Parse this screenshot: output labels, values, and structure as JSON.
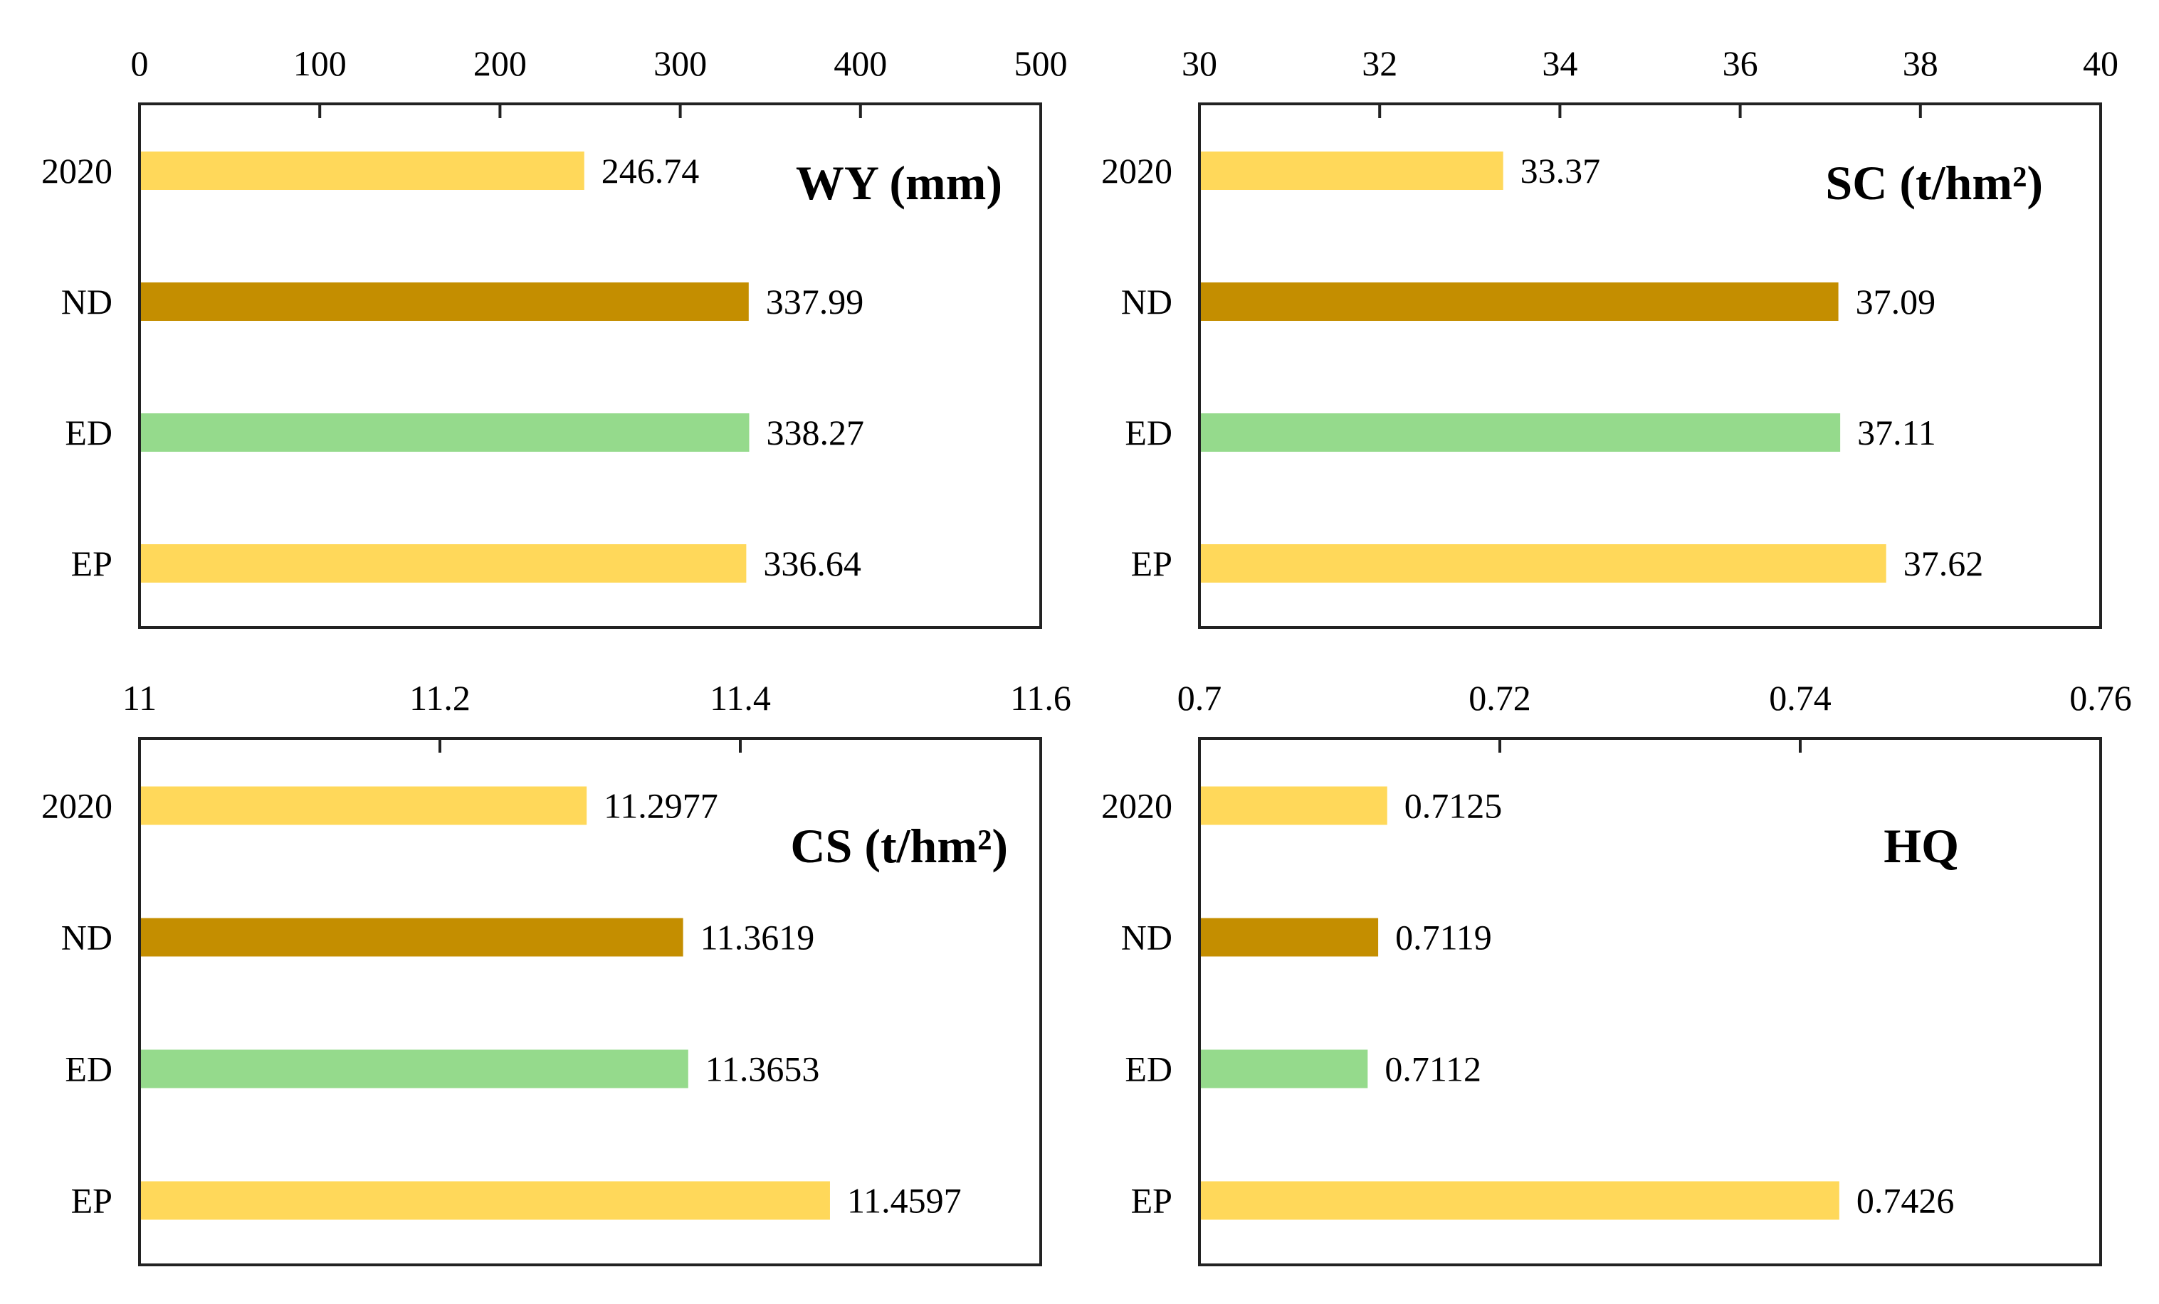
{
  "colors": {
    "yellow": "#FFD85A",
    "brown": "#C48E00",
    "green": "#95DA8C",
    "frame": "#222222"
  },
  "chart_data": [
    {
      "id": "wy",
      "type": "bar",
      "orientation": "horizontal",
      "title": "WY (mm)",
      "categories": [
        "2020",
        "ND",
        "ED",
        "EP"
      ],
      "values": [
        246.74,
        337.99,
        338.27,
        336.64
      ],
      "value_labels": [
        "246.74",
        "337.99",
        "338.27",
        "336.64"
      ],
      "bar_colors": [
        "yellow",
        "brown",
        "green",
        "yellow"
      ],
      "xlim": [
        0,
        500
      ],
      "xticks": [
        0,
        100,
        200,
        300,
        400,
        500
      ],
      "xtick_labels": [
        "0",
        "100",
        "200",
        "300",
        "400",
        "500"
      ],
      "xaxis_position": "top",
      "xlabel": "",
      "ylabel": "",
      "grid": false
    },
    {
      "id": "sc",
      "type": "bar",
      "orientation": "horizontal",
      "title": "SC (t/hm²)",
      "categories": [
        "2020",
        "ND",
        "ED",
        "EP"
      ],
      "values": [
        33.37,
        37.09,
        37.11,
        37.62
      ],
      "value_labels": [
        "33.37",
        "37.09",
        "37.11",
        "37.62"
      ],
      "bar_colors": [
        "yellow",
        "brown",
        "green",
        "yellow"
      ],
      "xlim": [
        30,
        40
      ],
      "xticks": [
        30,
        32,
        34,
        36,
        38,
        40
      ],
      "xtick_labels": [
        "30",
        "32",
        "34",
        "36",
        "38",
        "40"
      ],
      "xaxis_position": "top",
      "xlabel": "",
      "ylabel": "",
      "grid": false
    },
    {
      "id": "cs",
      "type": "bar",
      "orientation": "horizontal",
      "title": "CS (t/hm²)",
      "categories": [
        "2020",
        "ND",
        "ED",
        "EP"
      ],
      "values": [
        11.2977,
        11.3619,
        11.3653,
        11.4597
      ],
      "value_labels": [
        "11.2977",
        "11.3619",
        "11.3653",
        "11.4597"
      ],
      "bar_colors": [
        "yellow",
        "brown",
        "green",
        "yellow"
      ],
      "xlim": [
        11,
        11.6
      ],
      "xticks": [
        11,
        11.2,
        11.4,
        11.6
      ],
      "xtick_labels": [
        "11",
        "11.2",
        "11.4",
        "11.6"
      ],
      "xaxis_position": "top",
      "xlabel": "",
      "ylabel": "",
      "grid": false
    },
    {
      "id": "hq",
      "type": "bar",
      "orientation": "horizontal",
      "title": "HQ",
      "categories": [
        "2020",
        "ND",
        "ED",
        "EP"
      ],
      "values": [
        0.7125,
        0.7119,
        0.7112,
        0.7426
      ],
      "value_labels": [
        "0.7125",
        "0.7119",
        "0.7112",
        "0.7426"
      ],
      "bar_colors": [
        "yellow",
        "brown",
        "green",
        "yellow"
      ],
      "xlim": [
        0.7,
        0.76
      ],
      "xticks": [
        0.7,
        0.72,
        0.74,
        0.76
      ],
      "xtick_labels": [
        "0.7",
        "0.72",
        "0.74",
        "0.76"
      ],
      "xaxis_position": "top",
      "xlabel": "",
      "ylabel": "",
      "grid": false
    }
  ]
}
